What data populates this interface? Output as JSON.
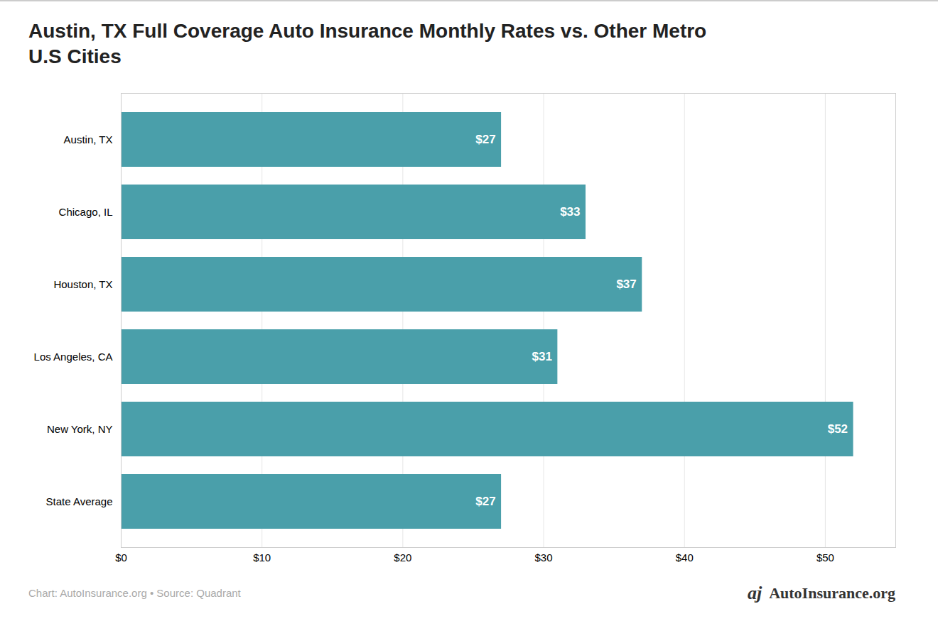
{
  "chart_data": {
    "type": "bar",
    "orientation": "horizontal",
    "title": "Austin, TX Full Coverage Auto Insurance Monthly Rates vs. Other Metro\nU.S Cities",
    "categories": [
      "Austin, TX",
      "Chicago, IL",
      "Houston, TX",
      "Los Angeles, CA",
      "New York, NY",
      "State Average"
    ],
    "values": [
      27,
      33,
      37,
      31,
      52,
      27
    ],
    "value_labels": [
      "$27",
      "$33",
      "$37",
      "$31",
      "$52",
      "$27"
    ],
    "data_labels": true,
    "color": "#4a9faa",
    "xlim": [
      0,
      55
    ],
    "xticks": [
      {
        "value": 0,
        "label": "$0"
      },
      {
        "value": 10,
        "label": "$10"
      },
      {
        "value": 20,
        "label": "$20"
      },
      {
        "value": 30,
        "label": "$30"
      },
      {
        "value": 40,
        "label": "$40"
      },
      {
        "value": 50,
        "label": "$50"
      }
    ],
    "grid": true,
    "annotations": [
      "Chart: AutoInsurance.org • Source: Quadrant",
      "AutoInsurance.org",
      "aj"
    ]
  }
}
